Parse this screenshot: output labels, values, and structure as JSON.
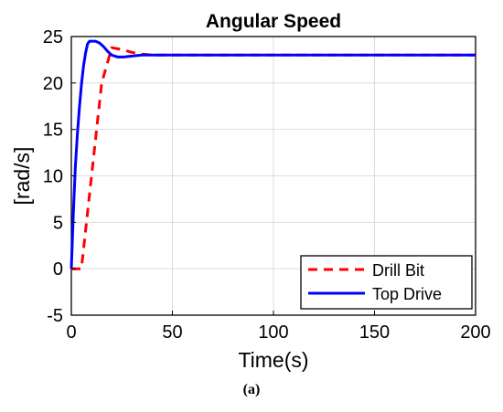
{
  "chart_data": {
    "type": "line",
    "title": "Angular Speed",
    "xlabel": "Time(s)",
    "ylabel": "[rad/s]",
    "xlim": [
      0,
      200
    ],
    "ylim": [
      -5,
      25
    ],
    "xticks": [
      "0",
      "50",
      "100",
      "150",
      "200"
    ],
    "yticks": [
      "-5",
      "0",
      "5",
      "10",
      "15",
      "20",
      "25"
    ],
    "grid": true,
    "legend_position": "bottom-right",
    "series": [
      {
        "name": "Drill Bit",
        "color": "#ff0000",
        "style": "dashed",
        "x": [
          0,
          5,
          10,
          15,
          20,
          25,
          30,
          35,
          40,
          50,
          100,
          150,
          200
        ],
        "y": [
          0,
          0,
          10,
          20,
          23.8,
          23.6,
          23.3,
          23.1,
          23,
          23,
          23,
          23,
          23
        ]
      },
      {
        "name": "Top Drive",
        "color": "#0000ff",
        "style": "solid",
        "x": [
          0,
          1,
          2,
          3,
          4,
          5,
          6,
          7,
          8,
          9,
          10,
          12,
          14,
          16,
          18,
          20,
          23,
          26,
          30,
          35,
          40,
          50,
          100,
          150,
          200
        ],
        "y": [
          0,
          6,
          11,
          14.5,
          17.3,
          19.8,
          21.8,
          23.2,
          24.2,
          24.5,
          24.5,
          24.5,
          24.3,
          23.9,
          23.4,
          23,
          22.8,
          22.8,
          22.9,
          23,
          23,
          23,
          23,
          23,
          23
        ]
      }
    ]
  },
  "caption": "(a)"
}
